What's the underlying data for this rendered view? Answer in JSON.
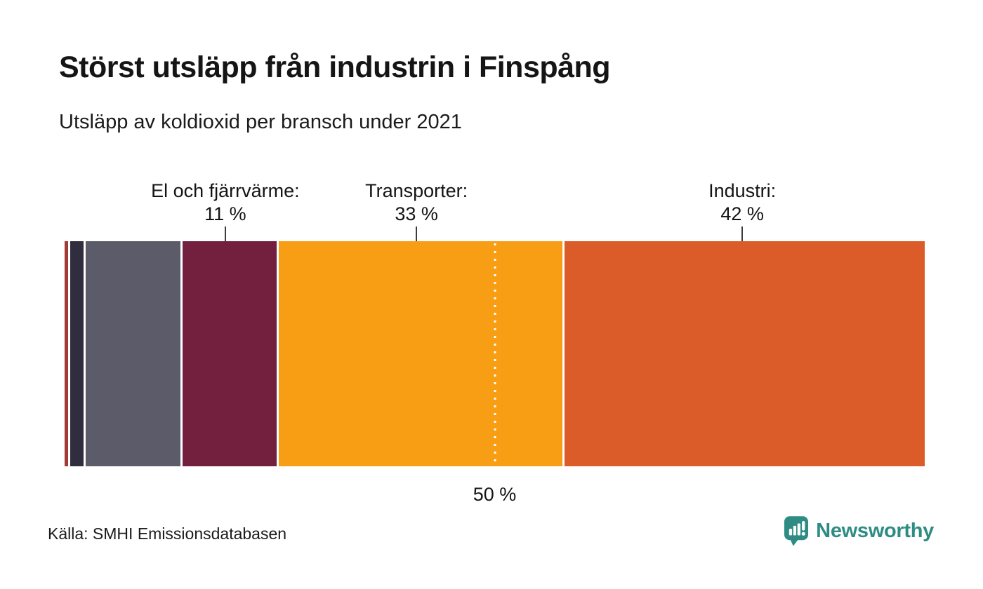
{
  "header": {
    "title": "Störst utsläpp från industrin i Finspång",
    "subtitle": "Utsläpp av koldioxid per bransch under 2021"
  },
  "chart_data": {
    "type": "bar",
    "variant": "horizontal-stacked-single-bar",
    "unit": "%",
    "series": [
      {
        "id": "other-a",
        "label": "",
        "value_label": "",
        "value": 0.4,
        "color": "#a33a36"
      },
      {
        "id": "other-b",
        "label": "",
        "value_label": "",
        "value": 1.6,
        "color": "#302e3e"
      },
      {
        "id": "other-c",
        "label": "",
        "value_label": "",
        "value": 11,
        "color": "#5c5b69"
      },
      {
        "id": "el-och-fjarrvarme",
        "label": "El och fjärrvärme:",
        "value_label": "11 %",
        "value": 11,
        "color": "#72203e"
      },
      {
        "id": "transporter",
        "label": "Transporter:",
        "value_label": "33 %",
        "value": 33,
        "color": "#f89e15"
      },
      {
        "id": "industri",
        "label": "Industri:",
        "value_label": "42 %",
        "value": 42,
        "color": "#dc5c29"
      }
    ],
    "midpoint_marker": {
      "position": 50,
      "label": "50 %"
    },
    "legend_position": "above-bar-annotations",
    "grid": false
  },
  "footer": {
    "source": "Källa: SMHI Emissionsdatabasen",
    "brand": "Newsworthy",
    "brand_color": "#2e8c85"
  }
}
